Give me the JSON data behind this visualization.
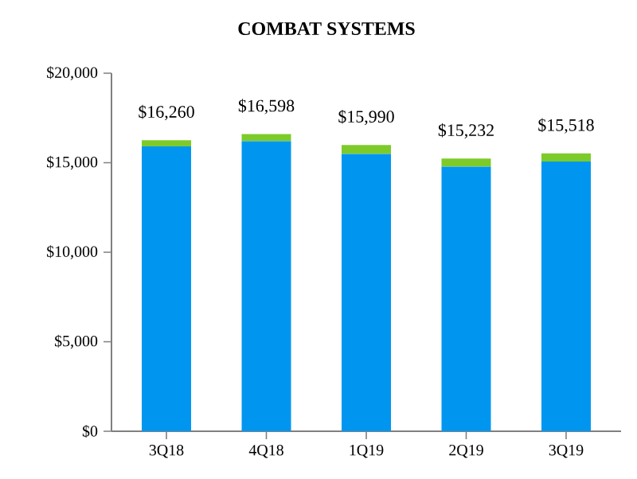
{
  "chart_data": {
    "type": "bar",
    "title": "COMBAT SYSTEMS",
    "stacked": true,
    "categories": [
      "3Q18",
      "4Q18",
      "1Q19",
      "2Q19",
      "3Q19"
    ],
    "series": [
      {
        "color": "#0096f0",
        "values": [
          15910,
          16198,
          15490,
          14782,
          15068
        ]
      },
      {
        "color": "#7dcb2a",
        "values": [
          350,
          400,
          500,
          450,
          450
        ]
      }
    ],
    "totals": [
      "$16,260",
      "$16,598",
      "$15,990",
      "$15,232",
      "$15,518"
    ],
    "ylim": [
      0,
      20000
    ],
    "yticks": [
      {
        "value": 0,
        "label": "$0"
      },
      {
        "value": 5000,
        "label": "$5,000"
      },
      {
        "value": 10000,
        "label": "$10,000"
      },
      {
        "value": 15000,
        "label": "$15,000"
      },
      {
        "value": 20000,
        "label": "$20,000"
      }
    ],
    "grid": false
  }
}
